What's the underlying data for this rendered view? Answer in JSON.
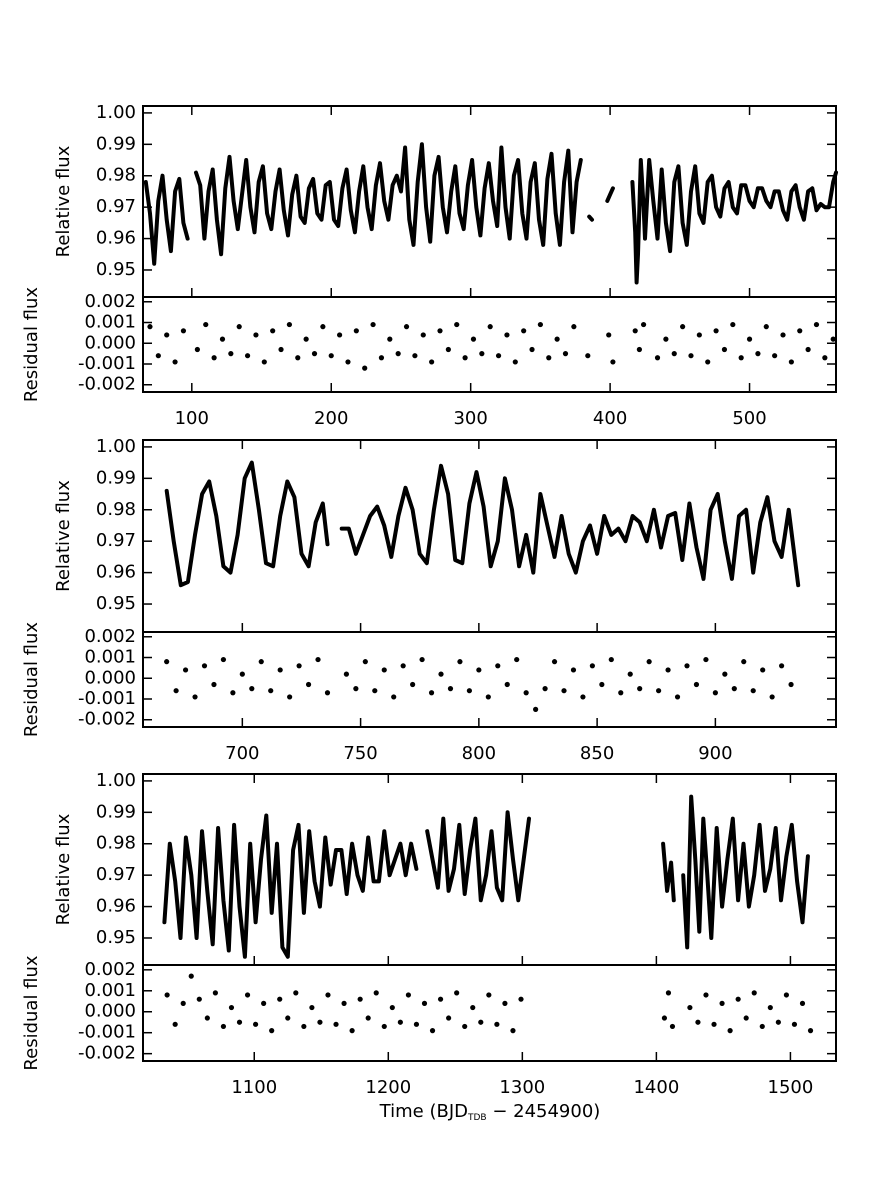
{
  "chart_data": [
    {
      "type": "line",
      "ylabel": "Relative flux",
      "color": "#000000",
      "xlim": [
        65,
        562
      ],
      "ylim": [
        0.9414,
        1.0022
      ],
      "yticks": [
        0.95,
        0.96,
        0.97,
        0.98,
        0.99,
        {
          "value": 1,
          "label": "1.00"
        }
      ],
      "x": [
        67,
        70,
        73,
        76,
        79,
        82,
        85,
        88,
        91,
        94,
        97,
        100,
        103,
        106,
        109,
        112,
        115,
        118,
        121,
        124,
        127,
        130,
        133,
        136,
        139,
        142,
        145,
        148,
        151,
        154,
        157,
        160,
        163,
        166,
        169,
        172,
        175,
        178,
        181,
        184,
        187,
        190,
        193,
        196,
        199,
        202,
        205,
        208,
        211,
        214,
        217,
        220,
        223,
        226,
        229,
        232,
        235,
        238,
        241,
        244,
        247,
        250,
        253,
        256,
        259,
        262,
        265,
        268,
        271,
        274,
        277,
        280,
        283,
        286,
        289,
        292,
        295,
        298,
        301,
        304,
        307,
        310,
        313,
        316,
        319,
        322,
        325,
        328,
        331,
        334,
        337,
        340,
        343,
        346,
        349,
        352,
        355,
        358,
        361,
        364,
        367,
        370,
        373,
        376,
        379,
        382,
        385,
        387,
        390,
        398,
        400,
        402,
        405,
        416,
        418,
        419,
        420,
        422,
        424,
        425,
        428,
        431,
        434,
        437,
        440,
        443,
        446,
        449,
        452,
        455,
        458,
        461,
        464,
        467,
        470,
        473,
        476,
        479,
        482,
        485,
        488,
        491,
        494,
        497,
        500,
        503,
        506,
        509,
        512,
        515,
        518,
        521,
        524,
        527,
        530,
        533,
        536,
        539,
        542,
        545,
        548,
        551,
        554,
        557,
        560,
        562
      ],
      "values": [
        0.978,
        0.968,
        0.952,
        0.972,
        0.98,
        0.966,
        0.956,
        0.975,
        0.979,
        0.965,
        0.96,
        null,
        0.981,
        0.977,
        0.96,
        0.975,
        0.982,
        0.966,
        0.955,
        0.976,
        0.986,
        0.972,
        0.963,
        0.974,
        0.985,
        0.97,
        0.962,
        0.978,
        0.983,
        0.968,
        0.963,
        0.975,
        0.982,
        0.969,
        0.961,
        0.974,
        0.98,
        0.967,
        0.965,
        0.976,
        0.979,
        0.968,
        0.966,
        0.977,
        0.978,
        0.966,
        0.964,
        0.976,
        0.982,
        0.969,
        0.962,
        0.975,
        0.983,
        0.97,
        0.963,
        0.977,
        0.984,
        0.972,
        0.966,
        0.977,
        0.98,
        0.975,
        0.989,
        0.966,
        0.958,
        0.978,
        0.99,
        0.97,
        0.959,
        0.98,
        0.986,
        0.97,
        0.962,
        0.975,
        0.983,
        0.968,
        0.963,
        0.977,
        0.985,
        0.97,
        0.961,
        0.976,
        0.984,
        0.972,
        0.964,
        0.989,
        0.97,
        0.96,
        0.98,
        0.985,
        0.968,
        0.96,
        0.978,
        0.984,
        0.966,
        0.958,
        0.979,
        0.987,
        0.968,
        0.958,
        0.978,
        0.988,
        0.962,
        0.978,
        0.985,
        null,
        0.967,
        0.966,
        null,
        0.972,
        0.974,
        0.976,
        null,
        0.978,
        0.962,
        0.946,
        0.955,
        0.985,
        0.97,
        0.96,
        0.985,
        0.972,
        0.96,
        0.982,
        0.965,
        0.956,
        0.978,
        0.983,
        0.965,
        0.958,
        0.975,
        0.983,
        0.968,
        0.965,
        0.978,
        0.98,
        0.97,
        0.967,
        0.976,
        0.978,
        0.97,
        0.968,
        0.977,
        0.977,
        0.972,
        0.97,
        0.976,
        0.976,
        0.972,
        0.97,
        0.975,
        0.975,
        0.969,
        0.966,
        0.975,
        0.977,
        0.97,
        0.966,
        0.975,
        0.976,
        0.969,
        0.971,
        0.97,
        0.97,
        0.978,
        0.981
      ]
    },
    {
      "type": "scatter",
      "ylabel": "Residual flux",
      "color": "#000000",
      "xlim": [
        65,
        562
      ],
      "ylim": [
        -0.00235,
        0.00223
      ],
      "yticks": [
        -0.002,
        -0.001,
        {
          "value": 0,
          "label": "0.000"
        },
        0.001,
        0.002
      ],
      "xticks": [
        100,
        200,
        300,
        400,
        500
      ],
      "x": [
        70,
        76,
        82,
        88,
        94,
        104,
        110,
        116,
        122,
        128,
        134,
        140,
        146,
        152,
        158,
        164,
        170,
        176,
        182,
        188,
        194,
        200,
        206,
        212,
        218,
        224,
        230,
        236,
        242,
        248,
        254,
        260,
        266,
        272,
        278,
        284,
        290,
        296,
        302,
        308,
        314,
        320,
        326,
        332,
        338,
        344,
        350,
        356,
        362,
        368,
        374,
        384,
        399,
        402,
        418,
        421,
        424,
        434,
        440,
        446,
        452,
        458,
        464,
        470,
        476,
        482,
        488,
        494,
        500,
        506,
        512,
        518,
        524,
        530,
        536,
        542,
        548,
        554,
        560
      ],
      "values": [
        0.0008,
        -0.0006,
        0.0004,
        -0.0009,
        0.0006,
        -0.0003,
        0.0009,
        -0.0007,
        0.0002,
        -0.0005,
        0.0008,
        -0.0006,
        0.0004,
        -0.0009,
        0.0006,
        -0.0003,
        0.0009,
        -0.0007,
        0.0002,
        -0.0005,
        0.0008,
        -0.0006,
        0.0004,
        -0.0009,
        0.0006,
        -0.0012,
        0.0009,
        -0.0007,
        0.0002,
        -0.0005,
        0.0008,
        -0.0006,
        0.0004,
        -0.0009,
        0.0006,
        -0.0003,
        0.0009,
        -0.0007,
        0.0002,
        -0.0005,
        0.0008,
        -0.0006,
        0.0004,
        -0.0009,
        0.0006,
        -0.0003,
        0.0009,
        -0.0007,
        0.0002,
        -0.0005,
        0.0008,
        -0.0006,
        0.0004,
        -0.0009,
        0.0006,
        -0.0003,
        0.0009,
        -0.0007,
        0.0002,
        -0.0005,
        0.0008,
        -0.0006,
        0.0004,
        -0.0009,
        0.0006,
        -0.0003,
        0.0009,
        -0.0007,
        0.0002,
        -0.0005,
        0.0008,
        -0.0006,
        0.0004,
        -0.0009,
        0.0006,
        -0.0003,
        0.0009,
        -0.0007,
        0.0002
      ]
    },
    {
      "type": "line",
      "ylabel": "Relative flux",
      "color": "#000000",
      "xlim": [
        658,
        951
      ],
      "ylim": [
        0.9411,
        1.0022
      ],
      "yticks": [
        0.95,
        0.96,
        0.97,
        0.98,
        0.99,
        {
          "value": 1,
          "label": "1.00"
        }
      ],
      "x": [
        668,
        671,
        674,
        677,
        680,
        683,
        686,
        689,
        692,
        695,
        698,
        701,
        704,
        707,
        710,
        713,
        716,
        719,
        722,
        725,
        728,
        731,
        734,
        736,
        739,
        742,
        745,
        748,
        751,
        754,
        757,
        760,
        763,
        766,
        769,
        772,
        775,
        778,
        781,
        784,
        787,
        790,
        793,
        796,
        799,
        802,
        805,
        808,
        811,
        814,
        817,
        820,
        823,
        826,
        829,
        832,
        835,
        838,
        841,
        844,
        847,
        850,
        853,
        856,
        859,
        862,
        865,
        868,
        871,
        874,
        877,
        880,
        883,
        886,
        889,
        892,
        895,
        898,
        901,
        904,
        907,
        910,
        913,
        916,
        919,
        922,
        925,
        928,
        931,
        934,
        935
      ],
      "values": [
        0.986,
        0.97,
        0.956,
        0.957,
        0.972,
        0.985,
        0.989,
        0.978,
        0.962,
        0.96,
        0.972,
        0.99,
        0.995,
        0.98,
        0.963,
        0.962,
        0.978,
        0.989,
        0.984,
        0.966,
        0.962,
        0.976,
        0.982,
        0.969,
        null,
        0.974,
        0.974,
        0.966,
        0.972,
        0.978,
        0.981,
        0.975,
        0.965,
        0.978,
        0.987,
        0.98,
        0.966,
        0.963,
        0.98,
        0.994,
        0.985,
        0.964,
        0.963,
        0.982,
        0.992,
        0.981,
        0.962,
        0.97,
        0.99,
        0.98,
        0.962,
        0.972,
        0.96,
        0.985,
        0.975,
        0.965,
        0.978,
        0.966,
        0.96,
        0.97,
        0.975,
        0.966,
        0.978,
        0.972,
        0.974,
        0.97,
        0.978,
        0.976,
        0.97,
        0.98,
        0.968,
        0.978,
        0.979,
        0.964,
        0.982,
        0.968,
        0.958,
        0.98,
        0.985,
        0.97,
        0.958,
        0.978,
        0.98,
        0.96,
        0.976,
        0.984,
        0.97,
        0.965,
        0.98,
        0.962,
        0.956
      ]
    },
    {
      "type": "scatter",
      "ylabel": "Residual flux",
      "color": "#000000",
      "xlim": [
        658,
        951
      ],
      "ylim": [
        -0.00235,
        0.00223
      ],
      "yticks": [
        -0.002,
        -0.001,
        {
          "value": 0,
          "label": "0.000"
        },
        0.001,
        0.002
      ],
      "xticks": [
        700,
        750,
        800,
        850,
        900
      ],
      "x": [
        668,
        672,
        676,
        680,
        684,
        688,
        692,
        696,
        700,
        704,
        708,
        712,
        716,
        720,
        724,
        728,
        732,
        736,
        744,
        748,
        752,
        756,
        760,
        764,
        768,
        772,
        776,
        780,
        784,
        788,
        792,
        796,
        800,
        804,
        808,
        812,
        816,
        820,
        824,
        828,
        832,
        836,
        840,
        844,
        848,
        852,
        856,
        860,
        864,
        868,
        872,
        876,
        880,
        884,
        888,
        892,
        896,
        900,
        904,
        908,
        912,
        916,
        920,
        924,
        928,
        932
      ],
      "values": [
        0.0008,
        -0.0006,
        0.0004,
        -0.0009,
        0.0006,
        -0.0003,
        0.0009,
        -0.0007,
        0.0002,
        -0.0005,
        0.0008,
        -0.0006,
        0.0004,
        -0.0009,
        0.0006,
        -0.0003,
        0.0009,
        -0.0007,
        0.0002,
        -0.0005,
        0.0008,
        -0.0006,
        0.0004,
        -0.0009,
        0.0006,
        -0.0003,
        0.0009,
        -0.0007,
        0.0002,
        -0.0005,
        0.0008,
        -0.0006,
        0.0004,
        -0.0009,
        0.0006,
        -0.0003,
        0.0009,
        -0.0007,
        -0.0015,
        -0.0005,
        0.0008,
        -0.0006,
        0.0004,
        -0.0009,
        0.0006,
        -0.0003,
        0.0009,
        -0.0007,
        0.0002,
        -0.0005,
        0.0008,
        -0.0006,
        0.0004,
        -0.0009,
        0.0006,
        -0.0003,
        0.0009,
        -0.0007,
        0.0002,
        -0.0005,
        0.0008,
        -0.0006,
        0.0004,
        -0.0009,
        0.0006,
        -0.0003
      ]
    },
    {
      "type": "line",
      "ylabel": "Relative flux",
      "color": "#000000",
      "xlim": [
        1017,
        1534
      ],
      "ylim": [
        0.9414,
        1.0022
      ],
      "yticks": [
        0.95,
        0.96,
        0.97,
        0.98,
        0.99,
        {
          "value": 1,
          "label": "1.00"
        }
      ],
      "x": [
        1033,
        1037,
        1041,
        1045,
        1049,
        1053,
        1057,
        1061,
        1065,
        1069,
        1073,
        1077,
        1081,
        1085,
        1089,
        1093,
        1097,
        1101,
        1105,
        1109,
        1113,
        1117,
        1121,
        1125,
        1129,
        1133,
        1137,
        1141,
        1145,
        1149,
        1153,
        1157,
        1161,
        1165,
        1169,
        1173,
        1177,
        1181,
        1185,
        1189,
        1193,
        1197,
        1201,
        1205,
        1209,
        1213,
        1217,
        1221,
        1225,
        1229,
        1233,
        1237,
        1241,
        1245,
        1249,
        1253,
        1257,
        1261,
        1265,
        1269,
        1273,
        1277,
        1281,
        1285,
        1289,
        1293,
        1297,
        1301,
        1305,
        1350,
        1405,
        1408,
        1411,
        1413,
        1416,
        1420,
        1423,
        1426,
        1429,
        1432,
        1435,
        1438,
        1441,
        1445,
        1449,
        1453,
        1457,
        1461,
        1465,
        1469,
        1473,
        1477,
        1481,
        1485,
        1489,
        1493,
        1497,
        1501,
        1505,
        1509,
        1513
      ],
      "values": [
        0.955,
        0.98,
        0.968,
        0.95,
        0.982,
        0.97,
        0.95,
        0.984,
        0.965,
        0.948,
        0.985,
        0.962,
        0.946,
        0.986,
        0.96,
        0.944,
        0.98,
        0.955,
        0.975,
        0.989,
        0.958,
        0.98,
        0.947,
        0.944,
        0.978,
        0.986,
        0.958,
        0.984,
        0.968,
        0.96,
        0.982,
        0.967,
        0.978,
        0.978,
        0.964,
        0.98,
        0.97,
        0.965,
        0.982,
        0.968,
        0.968,
        0.984,
        0.97,
        0.975,
        0.98,
        0.97,
        0.98,
        0.972,
        null,
        0.984,
        0.975,
        0.966,
        0.988,
        0.965,
        0.972,
        0.986,
        0.964,
        0.978,
        0.988,
        0.962,
        0.97,
        0.984,
        0.966,
        0.962,
        0.99,
        0.975,
        0.962,
        0.975,
        0.988,
        null,
        0.98,
        0.965,
        0.974,
        0.962,
        null,
        0.97,
        0.947,
        0.995,
        0.975,
        0.952,
        0.988,
        0.97,
        0.95,
        0.985,
        0.96,
        0.975,
        0.988,
        0.962,
        0.98,
        0.96,
        0.97,
        0.986,
        0.965,
        0.972,
        0.985,
        0.962,
        0.976,
        0.986,
        0.968,
        0.955,
        0.976
      ]
    },
    {
      "type": "scatter",
      "ylabel": "Residual flux",
      "color": "#000000",
      "xlim": [
        1017,
        1534
      ],
      "ylim": [
        -0.00235,
        0.00223
      ],
      "yticks": [
        -0.002,
        -0.001,
        {
          "value": 0,
          "label": "0.000"
        },
        0.001,
        0.002
      ],
      "xticks": [
        1100,
        1200,
        1300,
        1400,
        1500
      ],
      "xlabel": [
        "Time (BJD",
        "TDB",
        " − 2454900)"
      ],
      "x": [
        1035,
        1041,
        1047,
        1053,
        1059,
        1065,
        1071,
        1077,
        1083,
        1089,
        1095,
        1101,
        1107,
        1113,
        1119,
        1125,
        1131,
        1137,
        1143,
        1149,
        1155,
        1161,
        1167,
        1173,
        1179,
        1185,
        1191,
        1197,
        1203,
        1209,
        1215,
        1221,
        1227,
        1233,
        1239,
        1245,
        1251,
        1257,
        1263,
        1269,
        1275,
        1281,
        1287,
        1293,
        1299,
        1406,
        1409,
        1412,
        1425,
        1431,
        1437,
        1443,
        1449,
        1455,
        1461,
        1467,
        1473,
        1479,
        1485,
        1491,
        1497,
        1503,
        1509,
        1515
      ],
      "values": [
        0.0008,
        -0.0006,
        0.0004,
        0.0017,
        0.0006,
        -0.0003,
        0.0009,
        -0.0007,
        0.0002,
        -0.0005,
        0.0008,
        -0.0006,
        0.0004,
        -0.0009,
        0.0006,
        -0.0003,
        0.0009,
        -0.0007,
        0.0002,
        -0.0005,
        0.0008,
        -0.0006,
        0.0004,
        -0.0009,
        0.0006,
        -0.0003,
        0.0009,
        -0.0007,
        0.0002,
        -0.0005,
        0.0008,
        -0.0006,
        0.0004,
        -0.0009,
        0.0006,
        -0.0003,
        0.0009,
        -0.0007,
        0.0002,
        -0.0005,
        0.0008,
        -0.0006,
        0.0004,
        -0.0009,
        0.0006,
        -0.0003,
        0.0009,
        -0.0007,
        0.0002,
        -0.0005,
        0.0008,
        -0.0006,
        0.0004,
        -0.0009,
        0.0006,
        -0.0003,
        0.0009,
        -0.0007,
        0.0002,
        -0.0005,
        0.0008,
        -0.0006,
        0.0004,
        -0.0009
      ]
    }
  ]
}
